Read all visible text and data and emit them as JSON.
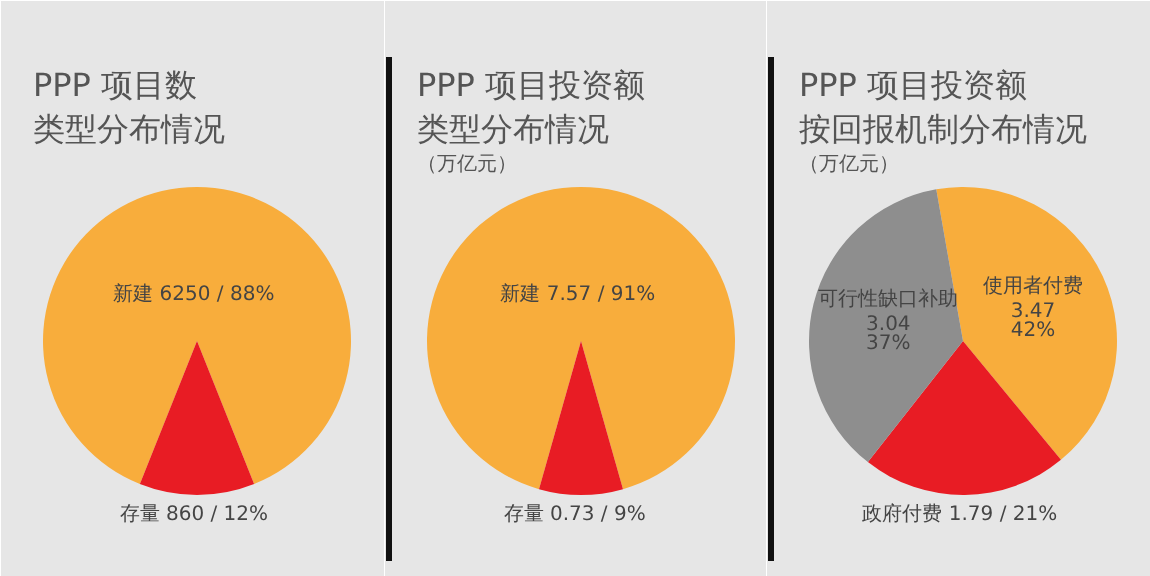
{
  "chart_data": [
    {
      "type": "pie",
      "title": "PPP 项目数",
      "subtitle": "类型分布情况",
      "categories": [
        "新建",
        "存量"
      ],
      "values": [
        6250,
        860
      ],
      "colors": [
        "#f8ad3c",
        "#e81c24"
      ],
      "value_labels": [
        "6250 / 88%",
        "860 / 12%"
      ]
    },
    {
      "type": "pie",
      "title": "PPP 项目投资额",
      "subtitle": "类型分布情况",
      "annotations": [
        "（万亿元）"
      ],
      "categories": [
        "新建",
        "存量"
      ],
      "values": [
        7.57,
        0.73
      ],
      "colors": [
        "#f8ad3c",
        "#e81c24"
      ],
      "value_labels": [
        "7.57 / 91%",
        "0.73  / 9%"
      ]
    },
    {
      "type": "pie",
      "title": "PPP 项目投资额",
      "subtitle": "按回报机制分布情况",
      "annotations": [
        "（万亿元）"
      ],
      "categories": [
        "使用者付费",
        "政府付费",
        "可行性缺口补助"
      ],
      "values": [
        3.47,
        1.79,
        3.04
      ],
      "colors": [
        "#f8ad3c",
        "#e81c24",
        "#8e8e8e"
      ],
      "value_labels": [
        "3.47\n42%",
        "1.79 / 21%",
        "3.04\n37%"
      ]
    }
  ]
}
